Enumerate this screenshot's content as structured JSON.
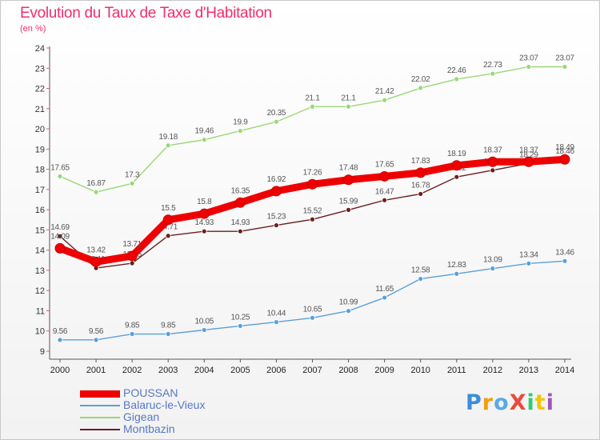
{
  "title": "Evolution du Taux de Taxe d'Habitation",
  "unit_label": "(en %)",
  "logo": {
    "text": "ProXiti",
    "letters": [
      {
        "ch": "P",
        "color": "#3b8ed8"
      },
      {
        "ch": "r",
        "color": "#f39c12"
      },
      {
        "ch": "o",
        "color": "#5aa9e6"
      },
      {
        "ch": "X",
        "color": "#e74c3c"
      },
      {
        "ch": "i",
        "color": "#2ecc71"
      },
      {
        "ch": "t",
        "color": "#f1c40f"
      },
      {
        "ch": "i",
        "color": "#9b59b6"
      }
    ]
  },
  "chart_data": {
    "type": "line",
    "title": "Evolution du Taux de Taxe d'Habitation",
    "ylabel": "(en %)",
    "x": [
      2000,
      2001,
      2002,
      2003,
      2004,
      2005,
      2006,
      2007,
      2008,
      2009,
      2010,
      2011,
      2012,
      2013,
      2014
    ],
    "ylim": [
      9,
      24
    ],
    "yticks": [
      9,
      10,
      11,
      12,
      13,
      14,
      15,
      16,
      17,
      18,
      19,
      20,
      21,
      22,
      23,
      24
    ],
    "grid": false,
    "legend_position": "bottom-left",
    "series": [
      {
        "name": "Gigean",
        "color": "#9dd67a",
        "values": [
          17.65,
          16.87,
          17.3,
          19.18,
          19.46,
          19.9,
          20.35,
          21.1,
          21.1,
          21.42,
          22.02,
          22.46,
          22.73,
          23.07,
          23.07
        ],
        "labels": [
          "17.65",
          "16.87",
          "17.3",
          "19.18",
          "19.46",
          "19.9",
          "20.35",
          "21.1",
          "21.1",
          "21.42",
          "22.02",
          "22.46",
          "22.73",
          "23.07",
          "23.07"
        ]
      },
      {
        "name": "Balaruc-le-Vieux",
        "color": "#5b9fd6",
        "values": [
          9.56,
          9.56,
          9.85,
          9.85,
          10.05,
          10.25,
          10.44,
          10.65,
          10.99,
          11.65,
          12.58,
          12.83,
          13.09,
          13.34,
          13.46
        ],
        "labels": [
          "9.56",
          "9.56",
          "9.85",
          "9.85",
          "10.05",
          "10.25",
          "10.44",
          "10.65",
          "10.99",
          "11.65",
          "12.58",
          "12.83",
          "13.09",
          "13.34",
          "13.46"
        ]
      },
      {
        "name": "Montbazin",
        "color": "#6b1f1f",
        "values": [
          14.69,
          13.11,
          13.35,
          14.71,
          14.93,
          14.93,
          15.23,
          15.52,
          15.99,
          16.47,
          16.78,
          17.62,
          17.95,
          18.29,
          18.46
        ],
        "labels": [
          "14.69",
          "13.11",
          "13.35",
          "14.71",
          "14.93",
          "14.93",
          "15.23",
          "15.52",
          "15.99",
          "16.47",
          "16.78",
          "17.62",
          "17.95",
          "18.29",
          "18.46"
        ]
      },
      {
        "name": "POUSSAN",
        "color": "#ee0000",
        "values": [
          14.09,
          13.42,
          13.71,
          15.5,
          15.8,
          16.35,
          16.92,
          17.26,
          17.48,
          17.65,
          17.83,
          18.19,
          18.37,
          18.37,
          18.49
        ],
        "labels": [
          "14.09",
          "13.42",
          "13.71",
          "15.5",
          "15.8",
          "16.35",
          "16.92",
          "17.26",
          "17.48",
          "17.65",
          "17.83",
          "18.19",
          "18.37",
          "18.37",
          "18.49"
        ]
      }
    ],
    "legend_order": [
      "POUSSAN",
      "Balaruc-le-Vieux",
      "Gigean",
      "Montbazin"
    ]
  }
}
